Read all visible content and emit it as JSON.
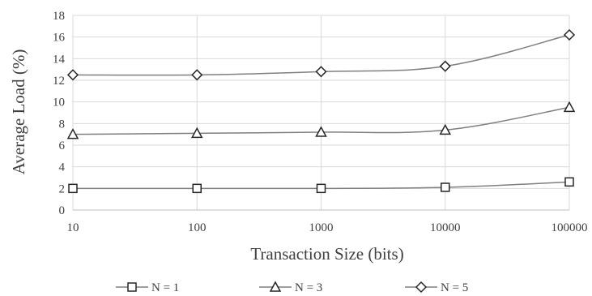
{
  "chart_data": {
    "type": "line",
    "xlabel": "Transaction Size (bits)",
    "ylabel": "Average Load (%)",
    "x_scale": "log",
    "categories": [
      "10",
      "100",
      "1000",
      "10000",
      "100000"
    ],
    "x": [
      10,
      100,
      1000,
      10000,
      100000
    ],
    "ylim": [
      0,
      18
    ],
    "yticks": [
      "0",
      "2",
      "4",
      "6",
      "8",
      "10",
      "12",
      "14",
      "16",
      "18"
    ],
    "grid": true,
    "legend_position": "bottom",
    "series": [
      {
        "name": "N = 1",
        "marker": "square",
        "values": [
          2.0,
          2.0,
          2.0,
          2.1,
          2.6
        ]
      },
      {
        "name": "N = 3",
        "marker": "triangle",
        "values": [
          7.0,
          7.1,
          7.2,
          7.4,
          9.5
        ]
      },
      {
        "name": "N = 5",
        "marker": "diamond",
        "values": [
          12.5,
          12.5,
          12.8,
          13.3,
          16.2
        ]
      }
    ],
    "colors": {
      "line": "#7f7f7f",
      "marker_stroke": "#262626",
      "grid": "#d9d9d9",
      "text": "#404040"
    }
  }
}
